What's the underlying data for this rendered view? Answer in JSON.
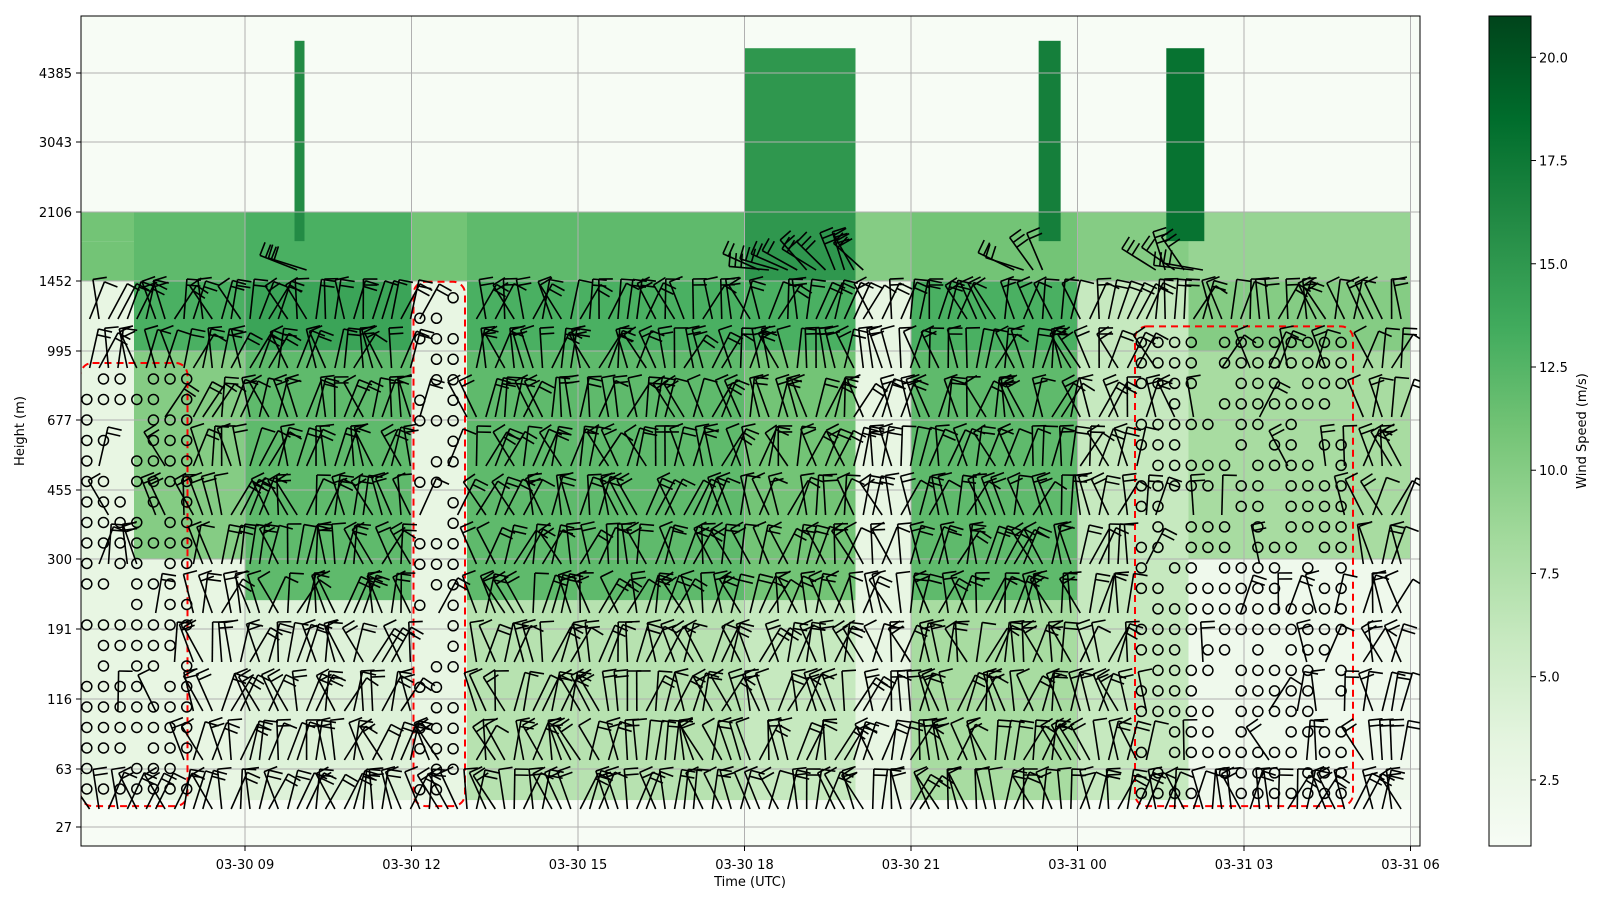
{
  "chart_data": {
    "type": "heatmap",
    "xlabel": "Time (UTC)",
    "ylabel": "Height (m)",
    "colorbar_label": "Wind Speed (m/s)",
    "colormap": "Greens",
    "grid": true,
    "x_tick_labels": [
      "03-30 09",
      "03-30 12",
      "03-30 15",
      "03-30 18",
      "03-30 21",
      "03-31 00",
      "03-31 03",
      "03-31 06"
    ],
    "x_ticks_hours": [
      9,
      12,
      15,
      18,
      21,
      24,
      27,
      30
    ],
    "xlim_hours": [
      6.1,
      30.0
    ],
    "y_tick_labels": [
      "27",
      "63",
      "116",
      "191",
      "300",
      "455",
      "677",
      "995",
      "1452",
      "2106",
      "3043",
      "4385"
    ],
    "colorbar_ticks": [
      "2.5",
      "5.0",
      "7.5",
      "10.0",
      "12.5",
      "15.0",
      "17.5",
      "20.0"
    ],
    "colorbar_range": [
      0.9,
      21.0
    ],
    "colors": {
      "cmap_low": "#f7fcf5",
      "cmap_high": "#00441b",
      "barb": "#000000",
      "contour": "#ff0000",
      "grid": "#b0b0b0"
    },
    "wind_speed_profiles": [
      {
        "time_range": [
          "03-30 06",
          "03-30 07"
        ],
        "below_1452_m": 3,
        "1452_to_1800_m": 11,
        "1800_to_2106_m": 11
      },
      {
        "time_range": [
          "03-30 07",
          "03-30 09"
        ],
        "below_300_m": 3,
        "300_to_995_m": 10,
        "995_to_1452_m": 13,
        "1452_to_2106_m": 12
      },
      {
        "time_range": [
          "03-30 09",
          "03-30 12"
        ],
        "below_230_m": 4,
        "230_to_995_m": 12,
        "995_to_1452_m": 14,
        "1452_to_2106_m": 13
      },
      {
        "time_range": [
          "03-30 12",
          "03-30 13"
        ],
        "below_1452_m": 3,
        "1452_to_2106_m": 11
      },
      {
        "time_range": [
          "03-30 13",
          "03-30 18"
        ],
        "below_230_m": 7,
        "230_to_995_m": 12,
        "995_to_1452_m": 13,
        "1452_to_2106_m": 12
      },
      {
        "time_range": [
          "03-30 18",
          "03-30 20"
        ],
        "below_230_m": 6,
        "230_to_995_m": 11,
        "995_to_1452_m": 13,
        "1452_to_5000_m": 15
      },
      {
        "time_range": [
          "03-30 20",
          "03-30 21"
        ],
        "below_1452_m": 3,
        "1452_to_2106_m": 10
      },
      {
        "time_range": [
          "03-30 21",
          "03-31 00"
        ],
        "below_230_m": 8,
        "230_to_995_m": 12,
        "995_to_1452_m": 13,
        "1452_to_2106_m": 11
      },
      {
        "time_range": [
          "03-31 00",
          "03-31 02"
        ],
        "below_1452_m": 6,
        "1452_to_2106_m": 10
      },
      {
        "time_range": [
          "03-31 02",
          "03-31 06"
        ],
        "below_300_m": 2,
        "300_to_995_m": 8,
        "995_to_1452_m": 10,
        "1452_to_2106_m": 9
      }
    ],
    "high_wind_columns": [
      {
        "time": "03-30 10",
        "height_range_m": [
          1800,
          5200
        ],
        "speed": 16
      },
      {
        "time": "03-30 23",
        "height_range_m": [
          1800,
          5200
        ],
        "speed": 17
      },
      {
        "time": "03-31 01",
        "height_range_m": [
          1800,
          5000
        ],
        "speed": 18
      }
    ],
    "calm_regions": [
      {
        "time_range": [
          "03-30 06",
          "03-30 08"
        ],
        "height_range_m": [
          40,
          900
        ]
      },
      {
        "time_range": [
          "03-30 12",
          "03-30 13"
        ],
        "height_range_m": [
          40,
          1400
        ]
      },
      {
        "time_range": [
          "03-31 01",
          "03-31 05"
        ],
        "height_range_m": [
          40,
          1100
        ]
      }
    ]
  }
}
